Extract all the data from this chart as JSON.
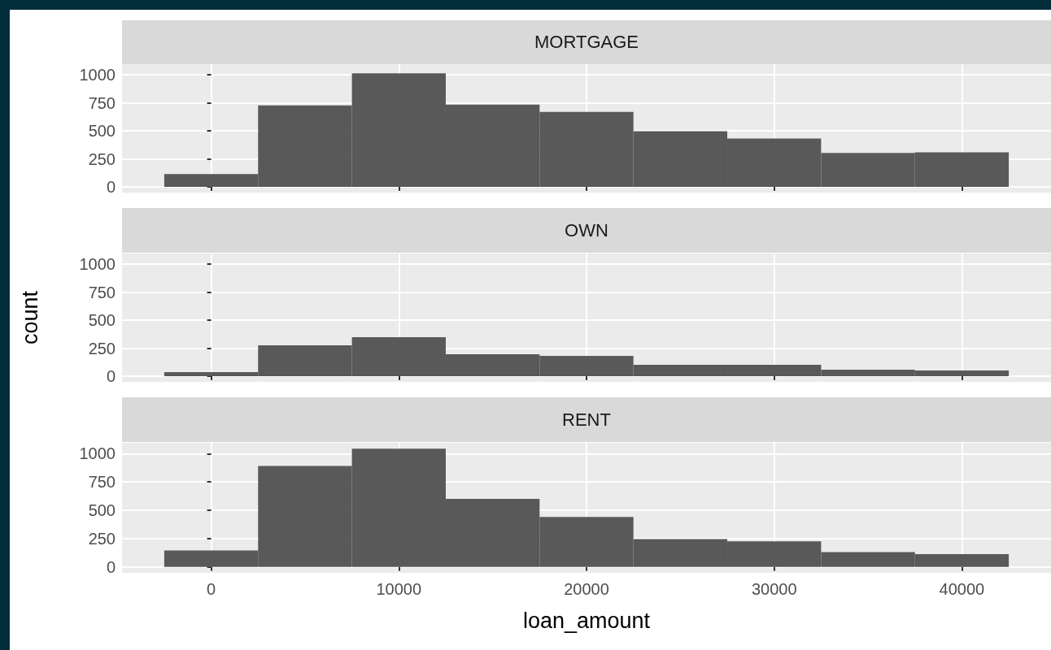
{
  "chart_data": [
    {
      "type": "histogram",
      "title": "MORTGAGE",
      "bins": [
        -2500,
        2500,
        7500,
        12500,
        17500,
        22500,
        27500,
        32500,
        37500,
        42500
      ],
      "values": [
        115,
        727,
        1014,
        734,
        669,
        496,
        432,
        302,
        309
      ],
      "color": "#595959",
      "xlim": [
        -4750,
        44750
      ],
      "xticks": [
        0,
        10000,
        20000,
        30000,
        40000
      ],
      "ylim": [
        -52,
        1095
      ],
      "yticks": [
        0,
        250,
        500,
        750,
        1000
      ],
      "grid": true,
      "tick_labels": "y"
    },
    {
      "type": "histogram",
      "title": "OWN",
      "ylabel": "count",
      "bins": [
        -2500,
        2500,
        7500,
        12500,
        17500,
        22500,
        27500,
        32500,
        37500,
        42500
      ],
      "values": [
        36,
        275,
        348,
        196,
        181,
        101,
        101,
        58,
        51
      ],
      "color": "#595959",
      "xlim": [
        -4750,
        44750
      ],
      "xticks": [
        0,
        10000,
        20000,
        30000,
        40000
      ],
      "ylim": [
        -52,
        1095
      ],
      "yticks": [
        0,
        250,
        500,
        750,
        1000
      ],
      "grid": true,
      "tick_labels": "y"
    },
    {
      "type": "histogram",
      "title": "RENT",
      "xlabel": "loan_amount",
      "bins": [
        -2500,
        2500,
        7500,
        12500,
        17500,
        22500,
        27500,
        32500,
        37500,
        42500
      ],
      "values": [
        145,
        891,
        1043,
        601,
        440,
        245,
        225,
        130,
        112
      ],
      "color": "#595959",
      "xlim": [
        -4750,
        44750
      ],
      "xticks": [
        0,
        10000,
        20000,
        30000,
        40000
      ],
      "ylim": [
        -52,
        1095
      ],
      "yticks": [
        0,
        250,
        500,
        750,
        1000
      ],
      "grid": true
    }
  ]
}
